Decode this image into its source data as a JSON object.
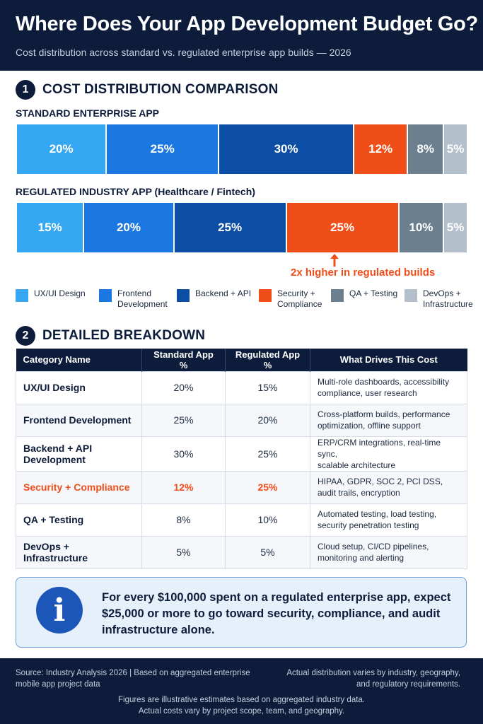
{
  "header": {
    "title": "Where Does Your App Development Budget Go?",
    "subtitle": "Cost distribution across standard vs. regulated enterprise app builds — 2026"
  },
  "section1": {
    "number": "1",
    "title": "COST DISTRIBUTION COMPARISON"
  },
  "section2": {
    "number": "2",
    "title": "DETAILED BREAKDOWN"
  },
  "colors": {
    "ux": "#36a7f2",
    "frontend": "#1b78e0",
    "backend": "#0c4da6",
    "security": "#f04e18",
    "qa": "#6b7f8f",
    "devops": "#b3c0cb",
    "navy": "#0c1c3a"
  },
  "chart_data": {
    "type": "bar",
    "stacked": true,
    "orientation": "horizontal",
    "categories": [
      "UX/UI Design",
      "Frontend Development",
      "Backend + API",
      "Security + Compliance",
      "QA + Testing",
      "DevOps + Infrastructure"
    ],
    "series": [
      {
        "name": "STANDARD ENTERPRISE APP",
        "values": [
          20,
          25,
          30,
          12,
          8,
          5
        ]
      },
      {
        "name": "REGULATED INDUSTRY APP (Healthcare / Fintech)",
        "values": [
          15,
          20,
          25,
          25,
          10,
          5
        ]
      }
    ],
    "unit": "%",
    "legend_position": "bottom",
    "annotation": "2x higher in regulated builds"
  },
  "legend": [
    {
      "line1": "UX/UI Design",
      "line2": "",
      "color": "ux"
    },
    {
      "line1": "Frontend",
      "line2": "Development",
      "color": "frontend"
    },
    {
      "line1": "Backend + API",
      "line2": "",
      "color": "backend"
    },
    {
      "line1": "Security +",
      "line2": "Compliance",
      "color": "security"
    },
    {
      "line1": "QA + Testing",
      "line2": "",
      "color": "qa"
    },
    {
      "line1": "DevOps +",
      "line2": "Infrastructure",
      "color": "devops"
    }
  ],
  "table": {
    "headers": [
      "Category Name",
      "Standard App %",
      "Regulated App %",
      "What Drives This Cost"
    ],
    "rows": [
      {
        "category": "UX/UI Design",
        "standard": "20%",
        "regulated": "15%",
        "drivers_1": "Multi-role dashboards, accessibility",
        "drivers_2": "compliance, user research"
      },
      {
        "category": "Frontend Development",
        "standard": "25%",
        "regulated": "20%",
        "drivers_1": "Cross-platform builds, performance",
        "drivers_2": "optimization, offline support"
      },
      {
        "category": "Backend + API Development",
        "standard": "30%",
        "regulated": "25%",
        "drivers_1": "ERP/CRM integrations, real-time sync,",
        "drivers_2": "scalable architecture"
      },
      {
        "category": "Security + Compliance",
        "standard": "12%",
        "regulated": "25%",
        "drivers_1": "HIPAA, GDPR, SOC 2, PCI DSS,",
        "drivers_2": "audit trails, encryption"
      },
      {
        "category": "QA + Testing",
        "standard": "8%",
        "regulated": "10%",
        "drivers_1": "Automated testing, load testing,",
        "drivers_2": "security penetration testing"
      },
      {
        "category": "DevOps + Infrastructure",
        "standard": "5%",
        "regulated": "5%",
        "drivers_1": "Cloud setup, CI/CD pipelines,",
        "drivers_2": "monitoring and alerting"
      }
    ]
  },
  "note": {
    "icon": "info-icon",
    "text": "For every $100,000 spent on a regulated enterprise app, expect $25,000 or more to go toward security, compliance, and audit infrastructure alone."
  },
  "footer": {
    "left_1": "Source: Industry Analysis 2026 | Based on aggregated enterprise",
    "left_2": "mobile app project data",
    "right_1": "Actual distribution varies by industry, geography,",
    "right_2": "and regulatory requirements.",
    "center_1": "Figures are illustrative estimates based on aggregated industry data.",
    "center_2": "Actual costs vary by project scope, team, and geography."
  }
}
